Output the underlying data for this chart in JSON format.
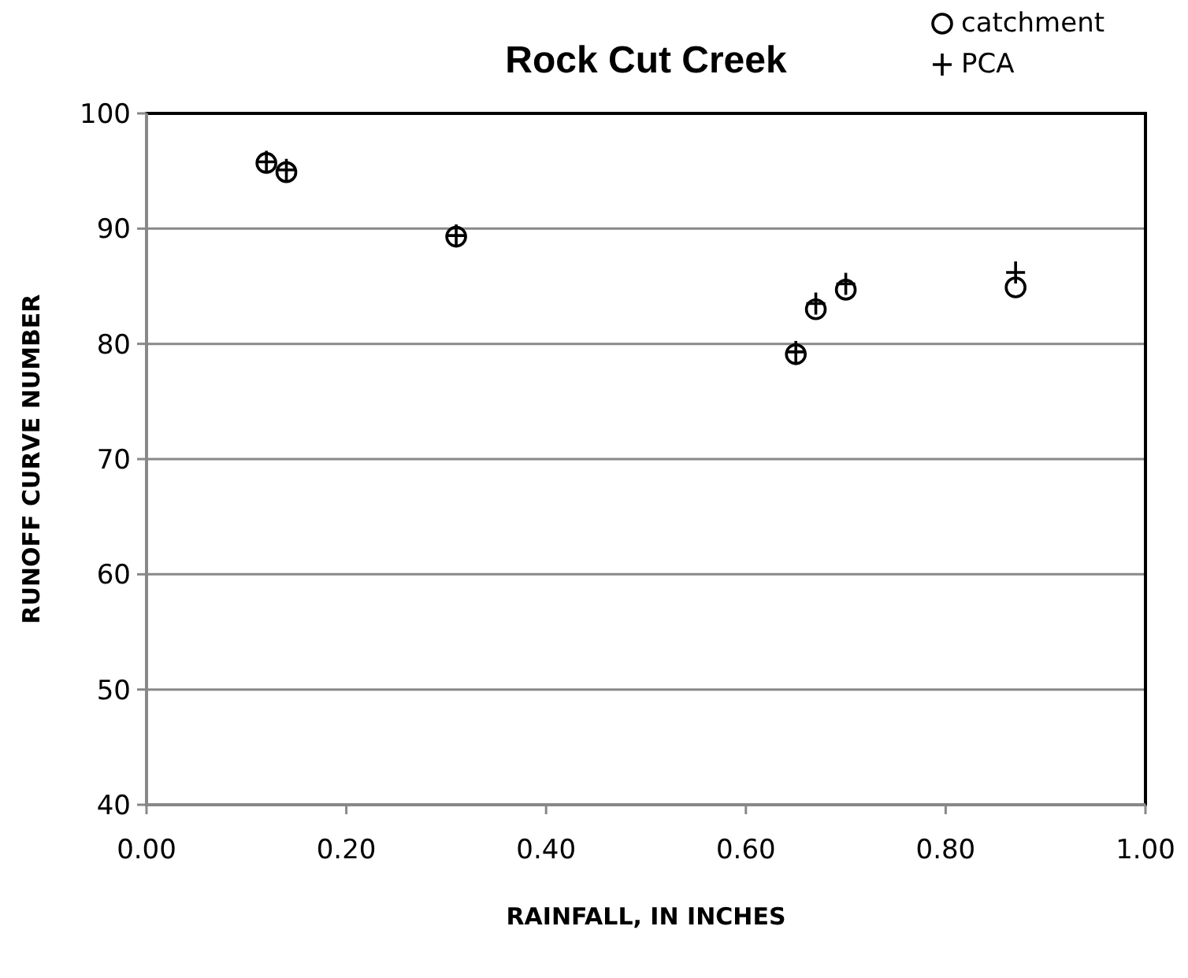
{
  "chart_data": {
    "type": "scatter",
    "title": "Rock Cut Creek",
    "xlabel": "RAINFALL, IN INCHES",
    "ylabel": "RUNOFF CURVE NUMBER",
    "xlim": [
      0,
      1
    ],
    "xticks": [
      {
        "value": 0,
        "label": "0.00"
      },
      {
        "value": 0.2,
        "label": "0.20"
      },
      {
        "value": 0.4,
        "label": "0.40"
      },
      {
        "value": 0.6,
        "label": "0.60"
      },
      {
        "value": 0.8,
        "label": "0.80"
      },
      {
        "value": 1,
        "label": "1.00"
      }
    ],
    "ylim": [
      40,
      100
    ],
    "yticks": [
      40,
      50,
      60,
      70,
      80,
      90,
      100
    ],
    "grid": "y",
    "legend": "top right",
    "series": [
      {
        "name": "catchment",
        "color": "#000000",
        "marker": "circle",
        "x": [
          0.12,
          0.14,
          0.31,
          0.65,
          0.67,
          0.7,
          0.87
        ],
        "values": [
          95.7,
          94.9,
          89.3,
          79.1,
          83.0,
          84.7,
          84.9
        ]
      },
      {
        "name": "PCA",
        "color": "#000000",
        "marker": "cross",
        "x": [
          0.12,
          0.14,
          0.31,
          0.65,
          0.67,
          0.7,
          0.87
        ],
        "values": [
          95.8,
          95.1,
          89.4,
          79.3,
          83.5,
          85.2,
          86.2
        ]
      }
    ]
  }
}
